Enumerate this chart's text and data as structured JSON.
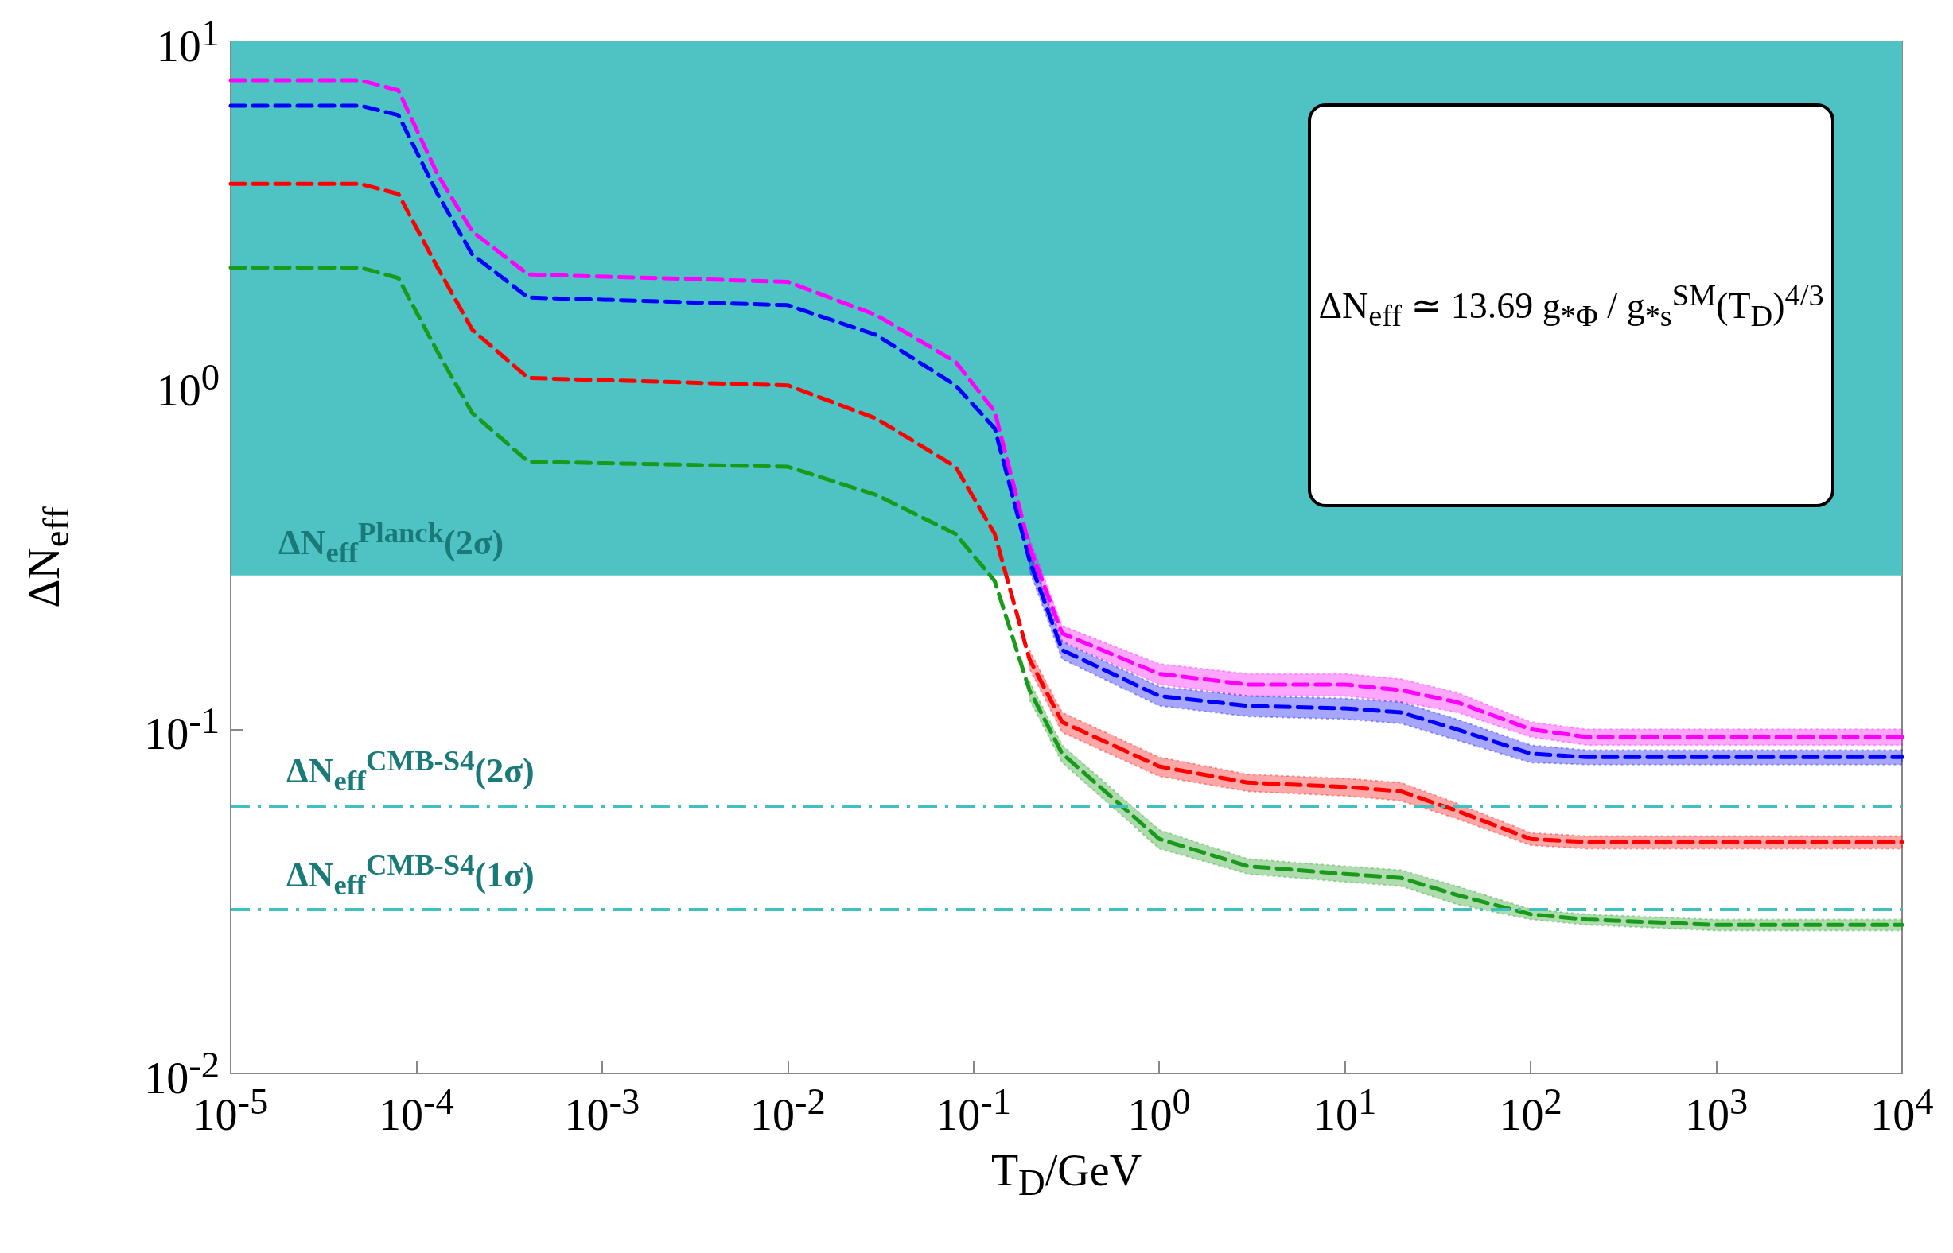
{
  "chart_data": {
    "type": "line",
    "xlabel": "T$_{D}$/GeV",
    "ylabel": "ΔN$_{eff}$",
    "log": "xy",
    "line_style": "dashed",
    "xlim": [
      1e-05,
      10000
    ],
    "ylim": [
      0.01,
      10
    ],
    "xticks": [
      {
        "value": 1e-05,
        "label": "10$^{-5}$"
      },
      {
        "value": 0.0001,
        "label": "10$^{-4}$"
      },
      {
        "value": 0.001,
        "label": "10$^{-3}$"
      },
      {
        "value": 0.01,
        "label": "10$^{-2}$"
      },
      {
        "value": 0.1,
        "label": "10$^{-1}$"
      },
      {
        "value": 1,
        "label": "10$^{0}$"
      },
      {
        "value": 10,
        "label": "10$^{1}$"
      },
      {
        "value": 100,
        "label": "10$^{2}$"
      },
      {
        "value": 1000,
        "label": "10$^{3}$"
      },
      {
        "value": 10000,
        "label": "10$^{4}$"
      }
    ],
    "yticks": [
      {
        "value": 0.01,
        "label": "10$^{-2}$"
      },
      {
        "value": 0.1,
        "label": "10$^{-1}$"
      },
      {
        "value": 1,
        "label": "10$^{0}$"
      },
      {
        "value": 10,
        "label": "10$^{1}$"
      }
    ],
    "x": [
      1e-05,
      5e-05,
      8e-05,
      0.00013,
      0.0002,
      0.0004,
      0.01,
      0.03,
      0.08,
      0.13,
      0.2,
      0.3,
      1,
      3,
      10,
      20,
      40,
      100,
      200,
      1000,
      10000
    ],
    "series": [
      {
        "color": "#ff00ff",
        "values": [
          7.7,
          7.7,
          7.2,
          4.1,
          2.8,
          2.1,
          2.0,
          1.6,
          1.17,
          0.84,
          0.34,
          0.19,
          0.145,
          0.135,
          0.135,
          0.13,
          0.12,
          0.1,
          0.095,
          0.095,
          0.095
        ],
        "upper": [
          null,
          null,
          null,
          null,
          null,
          null,
          null,
          null,
          null,
          null,
          0.36,
          0.2,
          0.155,
          0.145,
          0.145,
          0.14,
          0.128,
          0.105,
          0.1,
          0.1,
          0.1
        ],
        "lower": [
          null,
          null,
          null,
          null,
          null,
          null,
          null,
          null,
          null,
          null,
          0.32,
          0.18,
          0.135,
          0.125,
          0.125,
          0.12,
          0.112,
          0.095,
          0.09,
          0.09,
          0.09
        ]
      },
      {
        "color": "#0000ff",
        "values": [
          6.5,
          6.5,
          6.1,
          3.6,
          2.4,
          1.8,
          1.71,
          1.4,
          1.0,
          0.75,
          0.31,
          0.17,
          0.125,
          0.117,
          0.115,
          0.112,
          0.1,
          0.085,
          0.083,
          0.083,
          0.083
        ],
        "upper": [
          null,
          null,
          null,
          null,
          null,
          null,
          null,
          null,
          null,
          null,
          0.33,
          0.18,
          0.133,
          0.125,
          0.123,
          0.12,
          0.107,
          0.09,
          0.087,
          0.087,
          0.087
        ],
        "lower": [
          null,
          null,
          null,
          null,
          null,
          null,
          null,
          null,
          null,
          null,
          0.29,
          0.16,
          0.117,
          0.109,
          0.107,
          0.104,
          0.093,
          0.08,
          0.079,
          0.079,
          0.079
        ]
      },
      {
        "color": "#ff0000",
        "values": [
          3.85,
          3.85,
          3.6,
          2.2,
          1.45,
          1.05,
          1.0,
          0.8,
          0.58,
          0.37,
          0.16,
          0.105,
          0.078,
          0.07,
          0.068,
          0.066,
          0.058,
          0.048,
          0.047,
          0.047,
          0.047
        ],
        "upper": [
          null,
          null,
          null,
          null,
          null,
          null,
          null,
          null,
          null,
          null,
          0.17,
          0.112,
          0.083,
          0.074,
          0.072,
          0.07,
          0.061,
          0.05,
          0.049,
          0.049,
          0.049
        ],
        "lower": [
          null,
          null,
          null,
          null,
          null,
          null,
          null,
          null,
          null,
          null,
          0.15,
          0.098,
          0.073,
          0.066,
          0.064,
          0.062,
          0.055,
          0.046,
          0.045,
          0.045,
          0.045
        ]
      },
      {
        "color": "#1a9a1a",
        "values": [
          2.2,
          2.2,
          2.05,
          1.25,
          0.83,
          0.6,
          0.58,
          0.48,
          0.37,
          0.27,
          0.13,
          0.085,
          0.048,
          0.04,
          0.038,
          0.037,
          0.033,
          0.029,
          0.028,
          0.027,
          0.027
        ],
        "upper": [
          null,
          null,
          null,
          null,
          null,
          null,
          null,
          null,
          null,
          null,
          0.138,
          0.09,
          0.051,
          0.042,
          0.04,
          0.039,
          0.035,
          0.03,
          0.029,
          0.028,
          0.028
        ],
        "lower": [
          null,
          null,
          null,
          null,
          null,
          null,
          null,
          null,
          null,
          null,
          0.122,
          0.08,
          0.045,
          0.038,
          0.036,
          0.035,
          0.031,
          0.028,
          0.027,
          0.026,
          0.026
        ]
      }
    ],
    "bands": [
      {
        "axis": "y",
        "from": 0.28,
        "to": 10,
        "label": "ΔN$_{eff}$$^{Planck}$(2σ)",
        "color": "#4fc3c3"
      }
    ],
    "ref_lines": [
      {
        "axis": "y",
        "value": 0.06,
        "label": "ΔN$_{eff}$$^{CMB-S4}$(2σ)",
        "color": "#40c0c0",
        "line_style": "dashed"
      },
      {
        "axis": "y",
        "value": 0.03,
        "label": "ΔN$_{eff}$$^{CMB-S4}$(1σ)",
        "color": "#40c0c0",
        "line_style": "dashed"
      }
    ],
    "annotations": [
      "ΔN$_{eff}$ ≃ 13.69 g$_{*Φ}$ / g$_{*s}$$^{SM}$(T$_{D}$)$^{4/3}$"
    ]
  }
}
